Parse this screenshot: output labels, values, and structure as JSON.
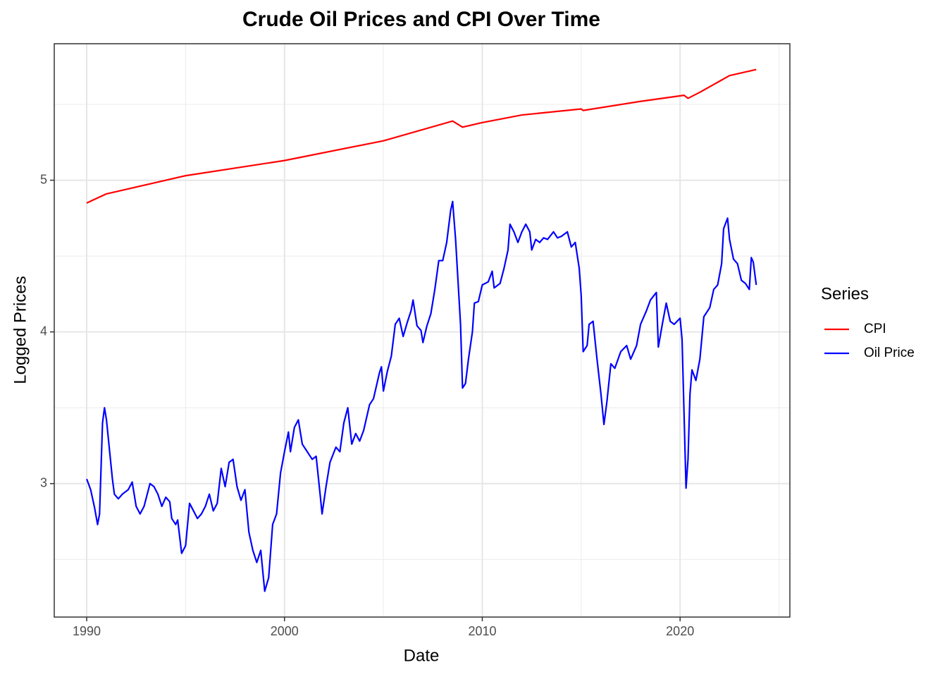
{
  "chart_data": {
    "type": "line",
    "title": "Crude Oil Prices and CPI Over Time",
    "x_label": "Date",
    "y_label": "Logged Prices",
    "legend_title": "Series",
    "legend": "right",
    "grid": true,
    "xlim": [
      1988.36,
      2025.55
    ],
    "xticks": [
      1990,
      2000,
      2010,
      2020
    ],
    "xminor": [
      1995,
      2005,
      2015,
      2025
    ],
    "ylim": [
      2.12,
      5.9
    ],
    "yticks": [
      3,
      4,
      5
    ],
    "yminor": [
      2.5,
      3.5,
      4.5,
      5.5
    ],
    "series": [
      {
        "name": "CPI",
        "color": "#ff0000",
        "x": [
          1990.0,
          1991.0,
          1995.0,
          2000.0,
          2005.0,
          2008.5,
          2009.0,
          2010.0,
          2012.0,
          2015.0,
          2015.1,
          2018.0,
          2020.2,
          2020.4,
          2021.0,
          2022.5,
          2023.85
        ],
        "values": [
          4.85,
          4.91,
          5.03,
          5.13,
          5.26,
          5.39,
          5.35,
          5.38,
          5.43,
          5.47,
          5.46,
          5.52,
          5.56,
          5.54,
          5.58,
          5.69,
          5.73
        ]
      },
      {
        "name": "Oil Price",
        "color": "#0000ff",
        "x": [
          1990.0,
          1990.2,
          1990.4,
          1990.55,
          1990.65,
          1990.8,
          1990.9,
          1991.0,
          1991.3,
          1991.4,
          1991.6,
          1991.8,
          1992.1,
          1992.3,
          1992.5,
          1992.7,
          1992.9,
          1993.2,
          1993.4,
          1993.6,
          1993.8,
          1994.0,
          1994.2,
          1994.3,
          1994.5,
          1994.6,
          1994.8,
          1995.0,
          1995.2,
          1995.4,
          1995.6,
          1995.8,
          1996.0,
          1996.2,
          1996.4,
          1996.6,
          1996.8,
          1997.0,
          1997.2,
          1997.4,
          1997.6,
          1997.8,
          1998.0,
          1998.2,
          1998.4,
          1998.6,
          1998.8,
          1999.0,
          1999.2,
          1999.4,
          1999.6,
          1999.8,
          2000.0,
          2000.2,
          2000.3,
          2000.5,
          2000.7,
          2000.9,
          2001.1,
          2001.4,
          2001.6,
          2001.8,
          2001.9,
          2002.1,
          2002.3,
          2002.6,
          2002.8,
          2003.0,
          2003.2,
          2003.4,
          2003.6,
          2003.8,
          2004.0,
          2004.3,
          2004.5,
          2004.8,
          2004.9,
          2005.0,
          2005.2,
          2005.4,
          2005.6,
          2005.8,
          2006.0,
          2006.2,
          2006.4,
          2006.5,
          2006.7,
          2006.9,
          2007.0,
          2007.2,
          2007.4,
          2007.6,
          2007.8,
          2008.0,
          2008.2,
          2008.4,
          2008.5,
          2008.65,
          2008.9,
          2009.0,
          2009.15,
          2009.3,
          2009.5,
          2009.6,
          2009.8,
          2010.0,
          2010.3,
          2010.5,
          2010.6,
          2010.9,
          2011.1,
          2011.3,
          2011.4,
          2011.6,
          2011.8,
          2012.0,
          2012.2,
          2012.4,
          2012.5,
          2012.7,
          2012.9,
          2013.1,
          2013.3,
          2013.6,
          2013.8,
          2014.0,
          2014.3,
          2014.5,
          2014.7,
          2014.9,
          2015.0,
          2015.1,
          2015.3,
          2015.4,
          2015.6,
          2015.8,
          2016.0,
          2016.15,
          2016.3,
          2016.5,
          2016.7,
          2017.0,
          2017.3,
          2017.5,
          2017.8,
          2018.0,
          2018.3,
          2018.5,
          2018.8,
          2018.9,
          2019.1,
          2019.3,
          2019.5,
          2019.7,
          2020.0,
          2020.1,
          2020.3,
          2020.4,
          2020.5,
          2020.6,
          2020.8,
          2021.0,
          2021.2,
          2021.5,
          2021.7,
          2021.9,
          2022.1,
          2022.2,
          2022.4,
          2022.5,
          2022.7,
          2022.9,
          2023.1,
          2023.3,
          2023.5,
          2023.6,
          2023.7,
          2023.85
        ],
        "values": [
          3.03,
          2.96,
          2.84,
          2.73,
          2.8,
          3.4,
          3.5,
          3.42,
          3.03,
          2.93,
          2.9,
          2.93,
          2.96,
          3.01,
          2.85,
          2.8,
          2.85,
          3.0,
          2.98,
          2.93,
          2.85,
          2.91,
          2.88,
          2.77,
          2.73,
          2.76,
          2.54,
          2.59,
          2.87,
          2.82,
          2.77,
          2.8,
          2.85,
          2.93,
          2.82,
          2.87,
          3.1,
          2.98,
          3.14,
          3.16,
          2.98,
          2.89,
          2.96,
          2.68,
          2.56,
          2.48,
          2.56,
          2.29,
          2.38,
          2.73,
          2.8,
          3.07,
          3.21,
          3.34,
          3.21,
          3.37,
          3.42,
          3.26,
          3.22,
          3.16,
          3.18,
          2.93,
          2.8,
          2.98,
          3.14,
          3.24,
          3.21,
          3.4,
          3.5,
          3.26,
          3.33,
          3.28,
          3.35,
          3.52,
          3.56,
          3.73,
          3.77,
          3.61,
          3.74,
          3.84,
          4.05,
          4.09,
          3.97,
          4.06,
          4.14,
          4.21,
          4.04,
          4.01,
          3.93,
          4.04,
          4.12,
          4.28,
          4.47,
          4.47,
          4.59,
          4.8,
          4.86,
          4.61,
          4.05,
          3.63,
          3.66,
          3.82,
          4.0,
          4.19,
          4.2,
          4.31,
          4.33,
          4.4,
          4.29,
          4.32,
          4.42,
          4.54,
          4.71,
          4.66,
          4.59,
          4.66,
          4.71,
          4.66,
          4.54,
          4.61,
          4.59,
          4.62,
          4.61,
          4.66,
          4.62,
          4.63,
          4.66,
          4.56,
          4.59,
          4.42,
          4.24,
          3.87,
          3.91,
          4.05,
          4.07,
          3.82,
          3.59,
          3.39,
          3.54,
          3.79,
          3.76,
          3.87,
          3.91,
          3.82,
          3.91,
          4.05,
          4.14,
          4.21,
          4.26,
          3.9,
          4.05,
          4.19,
          4.07,
          4.05,
          4.09,
          3.95,
          2.97,
          3.16,
          3.59,
          3.75,
          3.68,
          3.82,
          4.1,
          4.16,
          4.28,
          4.31,
          4.45,
          4.68,
          4.75,
          4.61,
          4.48,
          4.45,
          4.34,
          4.32,
          4.28,
          4.49,
          4.46,
          4.31
        ]
      }
    ]
  }
}
